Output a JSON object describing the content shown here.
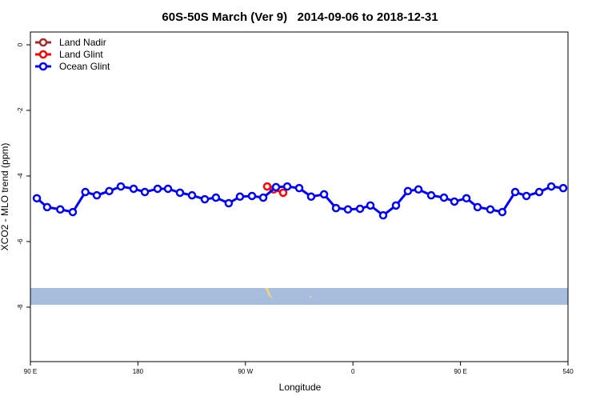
{
  "chart_data": {
    "type": "line",
    "title": "60S-50S March (Ver 9)   2014-09-06 to 2018-12-31",
    "xlabel": "Longitude",
    "ylabel": "XCO2 - MLO trend (ppm)",
    "xlim": [
      90,
      540
    ],
    "xticks": [
      {
        "value": 90,
        "label": "90 E"
      },
      180,
      {
        "value": 270,
        "label": "90 W"
      },
      {
        "value": 360,
        "label": "0"
      },
      {
        "value": 450,
        "label": "90 E"
      },
      540
    ],
    "ylim": [
      -9.66,
      0.39
    ],
    "yticks": [
      0,
      -2,
      -4,
      -6,
      -8
    ],
    "legend": "top-left",
    "series": [
      {
        "name": "Land Nadir",
        "color": "#a52a2a",
        "x": [],
        "values": []
      },
      {
        "name": "Land Glint",
        "color": "#ff0000",
        "x": [
          288.2,
          293.6,
          301.6
        ],
        "values": [
          -4.32,
          -4.41,
          -4.51
        ]
      },
      {
        "name": "Ocean Glint",
        "color": "#0000ff",
        "x": [
          95.4,
          104,
          115,
          125.5,
          136,
          145.6,
          156,
          165.7,
          176.4,
          185.8,
          196.5,
          205.2,
          215.2,
          225.3,
          236,
          245.3,
          256,
          265.4,
          275.5,
          284.9,
          295.6,
          305,
          315,
          325,
          335.8,
          345.8,
          355.8,
          365.9,
          374.6,
          385.3,
          396,
          406,
          414.8,
          425.5,
          436.2,
          444.9,
          455,
          464.3,
          475,
          485,
          495.8,
          505.2,
          515.9,
          526,
          536
        ],
        "values": [
          -4.68,
          -4.95,
          -5.02,
          -5.1,
          -4.49,
          -4.59,
          -4.46,
          -4.32,
          -4.39,
          -4.49,
          -4.39,
          -4.39,
          -4.51,
          -4.59,
          -4.71,
          -4.66,
          -4.83,
          -4.63,
          -4.61,
          -4.66,
          -4.34,
          -4.32,
          -4.37,
          -4.63,
          -4.56,
          -4.98,
          -5.02,
          -5.0,
          -4.9,
          -5.2,
          -4.9,
          -4.46,
          -4.41,
          -4.59,
          -4.66,
          -4.78,
          -4.68,
          -4.95,
          -5.02,
          -5.1,
          -4.49,
          -4.61,
          -4.49,
          -4.32,
          -4.37
        ]
      }
    ]
  }
}
